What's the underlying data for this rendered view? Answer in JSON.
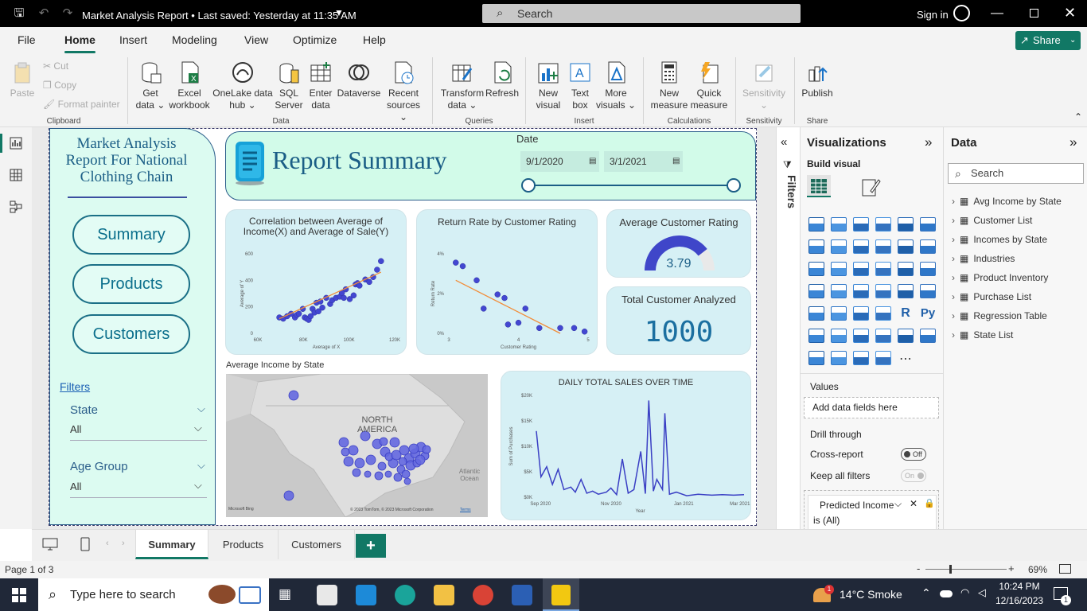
{
  "titlebar": {
    "title": "Market Analysis Report • Last saved: Yesterday at 11:35 AM",
    "search_placeholder": "Search",
    "signin": "Sign in"
  },
  "menu": {
    "items": [
      "File",
      "Home",
      "Insert",
      "Modeling",
      "View",
      "Optimize",
      "Help"
    ],
    "active": "Home",
    "share": "Share"
  },
  "ribbon": {
    "clipboard": {
      "paste": "Paste",
      "cut": "Cut",
      "copy": "Copy",
      "format_painter": "Format painter",
      "group": "Clipboard"
    },
    "data": {
      "get_data": [
        "Get",
        "data ⌄"
      ],
      "excel": [
        "Excel",
        "workbook"
      ],
      "onelake": [
        "OneLake data",
        "hub ⌄"
      ],
      "sql": [
        "SQL",
        "Server"
      ],
      "enter": [
        "Enter",
        "data"
      ],
      "dataverse": [
        "Dataverse",
        ""
      ],
      "recent": [
        "Recent",
        "sources ⌄"
      ],
      "group": "Data"
    },
    "queries": {
      "transform": [
        "Transform",
        "data ⌄"
      ],
      "refresh": [
        "Refresh",
        ""
      ],
      "group": "Queries"
    },
    "insert": {
      "new_visual": [
        "New",
        "visual"
      ],
      "text_box": [
        "Text",
        "box"
      ],
      "more_visuals": [
        "More",
        "visuals ⌄"
      ],
      "group": "Insert"
    },
    "calculations": {
      "new_measure": [
        "New",
        "measure"
      ],
      "quick_measure": [
        "Quick",
        "measure"
      ],
      "group": "Calculations"
    },
    "sensitivity": {
      "label": [
        "Sensitivity",
        "⌄"
      ],
      "group": "Sensitivity"
    },
    "share": {
      "publish": [
        "Publish",
        ""
      ],
      "group": "Share"
    }
  },
  "side": {
    "title": "Market Analysis Report For National Clothing Chain",
    "nav": [
      "Summary",
      "Products",
      "Customers"
    ],
    "filters_label": "Filters",
    "state_label": "State",
    "state_value": "All",
    "age_label": "Age Group",
    "age_value": "All"
  },
  "header": {
    "title": "Report Summary",
    "date_label": "Date",
    "date_from": "9/1/2020",
    "date_to": "3/1/2021"
  },
  "scatter1": {
    "title": "Correlation between Average of Income(X) and Average of Sale(Y)",
    "xlabel": "Average of X",
    "ylabel": "Average of Y",
    "xticks": [
      "60K",
      "80K",
      "100K",
      "120K"
    ],
    "yticks": [
      "0",
      "200",
      "400",
      "600"
    ]
  },
  "scatter2": {
    "title": "Return Rate by Customer Rating",
    "xlabel": "Customer Rating",
    "ylabel": "Return Rate",
    "xticks": [
      "3",
      "4",
      "5"
    ],
    "yticks": [
      "0%",
      "2%",
      "4%"
    ]
  },
  "gauge": {
    "title": "Average Customer Rating",
    "value": "3.79",
    "fill": 0.79
  },
  "kpi": {
    "title": "Total Customer Analyzed",
    "value": "1000"
  },
  "map": {
    "title": "Average Income by State",
    "continent": "NORTH AMERICA",
    "ocean": "Atlantic Ocean",
    "credit_left": "Microsoft Bing",
    "credit_right": "© 2023 TomTom, © 2023 Microsoft Corporation",
    "terms": "Terms"
  },
  "line": {
    "title": "DAILY TOTAL SALES OVER TIME",
    "ylabel": "Sum of Purchases",
    "xlabel": "Year",
    "xticks": [
      "Sep 2020",
      "Nov 2020",
      "Jan 2021",
      "Mar 2021"
    ],
    "yticks": [
      "$0K",
      "$5K",
      "$10K",
      "$15K",
      "$20K"
    ]
  },
  "filters_pane": {
    "label": "Filters"
  },
  "vis_pane": {
    "title": "Visualizations",
    "build": "Build visual",
    "values": "Values",
    "add_fields": "Add data fields here",
    "drill": "Drill through",
    "cross_report": "Cross-report",
    "cross_state": "Off",
    "keep_filters": "Keep all filters",
    "keep_state": "On",
    "filter_card": "Predicted Income",
    "filter_card_sub": "is (All)"
  },
  "data_pane": {
    "title": "Data",
    "search": "Search",
    "tables": [
      "Avg Income by State",
      "Customer List",
      "Incomes by State",
      "Industries",
      "Product Inventory",
      "Purchase List",
      "Regression Table",
      "State List"
    ]
  },
  "tabs": {
    "items": [
      "Summary",
      "Products",
      "Customers"
    ],
    "active": "Summary",
    "add": "+"
  },
  "status": {
    "page": "Page 1 of 3",
    "zoom": "69%",
    "minus": "-",
    "plus": "+"
  },
  "taskbar": {
    "search": "Type here to search",
    "weather": "14°C  Smoke",
    "time": "10:24 PM",
    "date": "12/16/2023",
    "badge": "1"
  },
  "chart_data": [
    {
      "type": "scatter",
      "title": "Correlation between Average of Income(X) and Average of Sale(Y)",
      "xlabel": "Average of X",
      "ylabel": "Average of Y",
      "xlim": [
        55000,
        125000
      ],
      "ylim": [
        0,
        650
      ],
      "x": [
        66000,
        68000,
        70000,
        72000,
        74000,
        75000,
        76000,
        78000,
        79000,
        80000,
        81000,
        82000,
        83000,
        84000,
        85000,
        86000,
        87000,
        88000,
        90000,
        92000,
        93000,
        95000,
        97000,
        98000,
        99000,
        100000,
        102000,
        104000,
        105000,
        106000,
        107000,
        110000,
        112000,
        114000,
        116000,
        118000
      ],
      "y": [
        130,
        120,
        140,
        160,
        130,
        150,
        160,
        200,
        130,
        120,
        110,
        140,
        200,
        170,
        250,
        180,
        260,
        210,
        290,
        240,
        270,
        290,
        300,
        330,
        290,
        360,
        280,
        310,
        400,
        410,
        390,
        440,
        420,
        460,
        520,
        590
      ],
      "trend": {
        "x": [
          66000,
          118000
        ],
        "y": [
          120,
          500
        ]
      }
    },
    {
      "type": "scatter",
      "title": "Return Rate by Customer Rating",
      "xlabel": "Customer Rating",
      "ylabel": "Return Rate",
      "xlim": [
        3,
        5
      ],
      "ylim": [
        0,
        0.045
      ],
      "x": [
        3.1,
        3.2,
        3.4,
        3.5,
        3.7,
        3.8,
        3.85,
        4.0,
        4.1,
        4.3,
        4.6,
        4.8,
        4.95
      ],
      "y": [
        0.04,
        0.038,
        0.03,
        0.014,
        0.022,
        0.02,
        0.005,
        0.006,
        0.014,
        0.003,
        0.003,
        0.003,
        0.001
      ],
      "trend": {
        "x": [
          3.1,
          4.6
        ],
        "y": [
          0.03,
          0.0
        ]
      }
    },
    {
      "type": "line",
      "title": "DAILY TOTAL SALES OVER TIME",
      "xlabel": "Year",
      "ylabel": "Sum of Purchases",
      "ylim": [
        0,
        20000
      ],
      "x": [
        "2020-09-01",
        "2020-09-05",
        "2020-09-10",
        "2020-09-15",
        "2020-09-20",
        "2020-09-25",
        "2020-10-01",
        "2020-10-05",
        "2020-10-10",
        "2020-10-15",
        "2020-10-20",
        "2020-10-25",
        "2020-11-01",
        "2020-11-05",
        "2020-11-10",
        "2020-11-15",
        "2020-11-20",
        "2020-11-25",
        "2020-12-01",
        "2020-12-05",
        "2020-12-08",
        "2020-12-12",
        "2020-12-15",
        "2020-12-20",
        "2020-12-22",
        "2020-12-26",
        "2021-01-01",
        "2021-01-10",
        "2021-01-20",
        "2021-02-01",
        "2021-02-10",
        "2021-02-20",
        "2021-03-01"
      ],
      "y": [
        13000,
        4000,
        6000,
        2500,
        5500,
        1500,
        2000,
        1000,
        3500,
        800,
        1200,
        600,
        1000,
        1800,
        500,
        7500,
        800,
        1500,
        9000,
        700,
        19000,
        1200,
        3500,
        1500,
        16500,
        600,
        1000,
        300,
        600,
        400,
        500,
        400,
        500
      ]
    }
  ]
}
